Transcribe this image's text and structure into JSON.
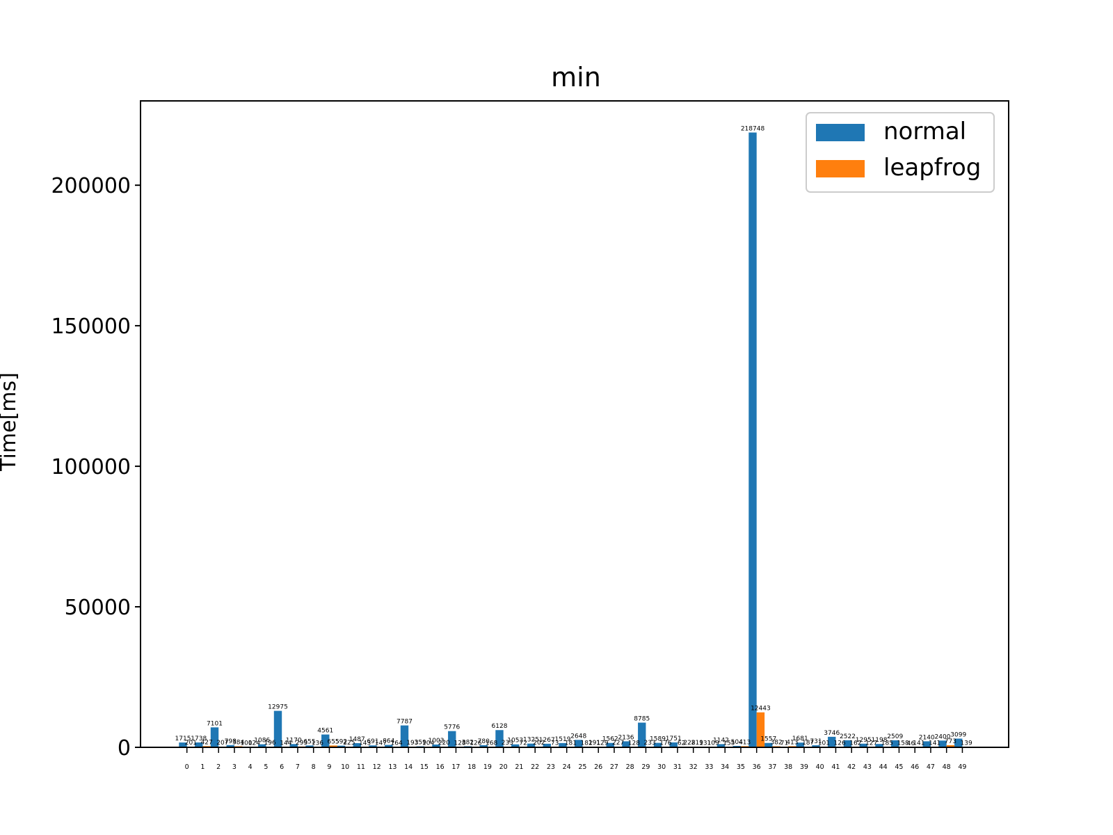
{
  "chart_data": {
    "type": "bar",
    "title": "min",
    "xlabel": "",
    "ylabel": "Time[ms]",
    "ylim": [
      0,
      230000
    ],
    "yticks": [
      0,
      50000,
      100000,
      150000,
      200000
    ],
    "categories": [
      "0",
      "1",
      "2",
      "3",
      "4",
      "5",
      "6",
      "7",
      "8",
      "9",
      "10",
      "11",
      "12",
      "13",
      "14",
      "15",
      "16",
      "17",
      "18",
      "19",
      "20",
      "21",
      "22",
      "23",
      "24",
      "25",
      "26",
      "27",
      "28",
      "29",
      "30",
      "31",
      "32",
      "33",
      "34",
      "35",
      "36",
      "37",
      "38",
      "39",
      "40",
      "41",
      "42",
      "43",
      "44",
      "45",
      "46",
      "47",
      "48",
      "49"
    ],
    "legend_position": "top-right",
    "grid": false,
    "series": [
      {
        "name": "normal",
        "color": "#1f77b4",
        "values": [
          1715,
          1738,
          7101,
          798,
          100,
          1086,
          12975,
          1170,
          655,
          4561,
          592,
          1487,
          691,
          864,
          7787,
          359,
          1003,
          5776,
          382,
          780,
          6128,
          1053,
          1325,
          1267,
          1519,
          2648,
          191,
          1562,
          2136,
          8785,
          1589,
          1751,
          228,
          131,
          1142,
          504,
          218748,
          1557,
          71,
          1681,
          731,
          3746,
          2522,
          1295,
          1198,
          2509,
          46,
          2140,
          2400,
          3099
        ]
      },
      {
        "name": "leapfrog",
        "color": "#ff7f0e",
        "values": [
          201,
          427,
          207,
          384,
          124,
          196,
          144,
          293,
          136,
          655,
          225,
          143,
          147,
          164,
          193,
          104,
          220,
          128,
          126,
          168,
          233,
          72,
          202,
          73,
          181,
          182,
          129,
          227,
          128,
          233,
          176,
          62,
          219,
          109,
          155,
          413,
          12443,
          382,
          413,
          187,
          101,
          126,
          162,
          127,
          185,
          158,
          141,
          141,
          773,
          139
        ]
      }
    ]
  }
}
